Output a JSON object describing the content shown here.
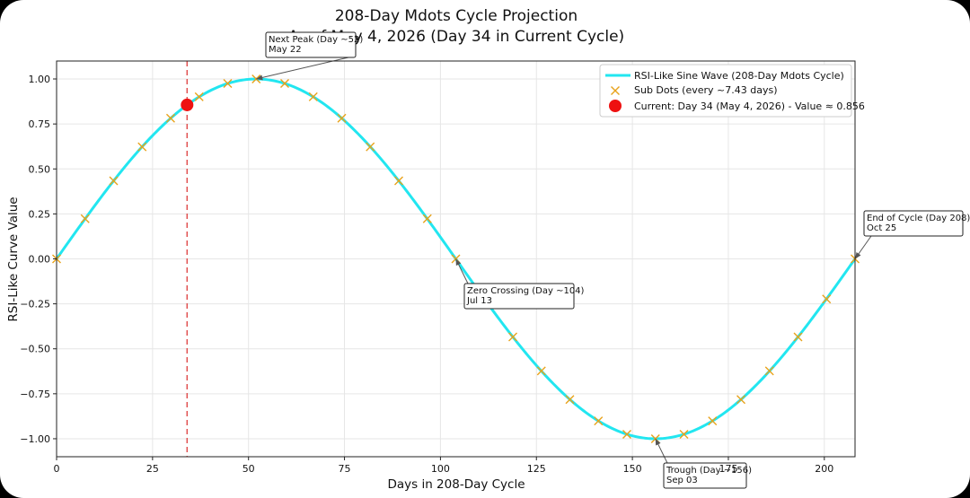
{
  "colors": {
    "curve": "#22e6f0",
    "sub_dots": "#e8a21a",
    "current": "#ee1111",
    "marker_line": "#e05050",
    "grid": "#e6e6e6"
  },
  "chart_data": {
    "type": "line",
    "title": "208-Day Mdots Cycle Projection",
    "subtitle": "As of May 4, 2026 (Day 34 in Current Cycle)",
    "xlabel": "Days in 208-Day Cycle",
    "ylabel": "RSI-Like Curve Value",
    "xlim": [
      0,
      208
    ],
    "ylim": [
      -1.1,
      1.1
    ],
    "xticks": [
      0,
      25,
      50,
      75,
      100,
      125,
      150,
      175,
      200
    ],
    "yticks": [
      1.0,
      0.75,
      0.5,
      0.25,
      0.0,
      -0.25,
      -0.5,
      -0.75,
      -1.0
    ],
    "ytick_labels": [
      "1.00",
      "0.75",
      "0.50",
      "0.25",
      "0.00",
      "−0.25",
      "−0.50",
      "−0.75",
      "−1.00"
    ],
    "grid": true,
    "legend_position": "top-right",
    "series": [
      {
        "name": "RSI-Like Sine Wave (208-Day Mdots Cycle)",
        "kind": "line",
        "function": "sin(2*pi*x/208)",
        "x_range": [
          0,
          208
        ]
      },
      {
        "name": "Sub Dots (every ~7.43 days)",
        "kind": "scatter",
        "marker": "x",
        "x": [
          0,
          7.43,
          14.86,
          22.29,
          29.71,
          37.14,
          44.57,
          52,
          59.43,
          66.86,
          74.29,
          81.71,
          89.14,
          96.57,
          104,
          111.43,
          118.86,
          126.29,
          133.71,
          141.14,
          148.57,
          156,
          163.43,
          170.86,
          178.29,
          185.71,
          193.14,
          200.57,
          208
        ],
        "y": [
          0,
          0.223,
          0.434,
          0.623,
          0.782,
          0.901,
          0.975,
          1.0,
          0.975,
          0.901,
          0.782,
          0.623,
          0.434,
          0.223,
          0,
          -0.223,
          -0.434,
          -0.623,
          -0.782,
          -0.901,
          -0.975,
          -1.0,
          -0.975,
          -0.901,
          -0.782,
          -0.623,
          -0.434,
          -0.223,
          0
        ]
      },
      {
        "name": "Current: Day 34 (May 4, 2026) - Value ≈ 0.856",
        "kind": "point",
        "x": [
          34
        ],
        "y": [
          0.856
        ]
      }
    ],
    "vertical_line_x": 34,
    "annotations": [
      {
        "id": "peak",
        "lines": [
          "Next Peak (Day ~52)",
          "May 22"
        ],
        "x": 52,
        "y": 1.0
      },
      {
        "id": "zero",
        "lines": [
          "Zero Crossing (Day ~104)",
          "Jul 13"
        ],
        "x": 104,
        "y": 0.0
      },
      {
        "id": "trough",
        "lines": [
          "Trough (Day ~156)",
          "Sep 03"
        ],
        "x": 156,
        "y": -1.0
      },
      {
        "id": "end",
        "lines": [
          "End of Cycle (Day 208)",
          "Oct 25"
        ],
        "x": 208,
        "y": 0.0
      }
    ]
  }
}
